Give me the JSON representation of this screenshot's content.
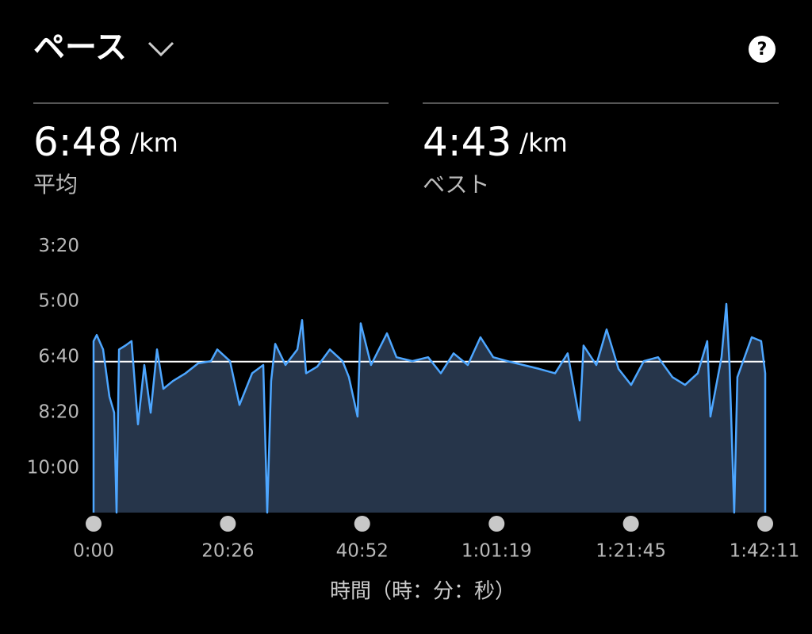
{
  "chart_data": {
    "type": "area",
    "title": "ペース",
    "stats": [
      {
        "value_label": "6:48",
        "unit": "/km",
        "label": "平均"
      },
      {
        "value_label": "4:43",
        "unit": "/km",
        "label": "ベスト"
      }
    ],
    "average": 408,
    "xlabel": "時間（時：分：秒）",
    "x": [
      0,
      29,
      87,
      145,
      188,
      210,
      232,
      290,
      347,
      405,
      463,
      521,
      579,
      637,
      724,
      840,
      955,
      1071,
      1129,
      1245,
      1332,
      1448,
      1549,
      1585,
      1621,
      1658,
      1752,
      1860,
      1904,
      1940,
      2041,
      2157,
      2273,
      2331,
      2410,
      2439,
      2533,
      2678,
      2765,
      2910,
      3054,
      3170,
      3286,
      3416,
      3532,
      3648,
      3778,
      3923,
      4068,
      4213,
      4328,
      4437,
      4473,
      4589,
      4683,
      4792,
      4907,
      5023,
      5153,
      5284,
      5399,
      5515,
      5602,
      5631,
      5732,
      5776,
      5805,
      5848,
      5877,
      6008,
      6094,
      6131
    ],
    "values": [
      371,
      360,
      386,
      471,
      500,
      680,
      386,
      379,
      371,
      521,
      414,
      500,
      386,
      457,
      443,
      429,
      411,
      407,
      386,
      407,
      486,
      429,
      414,
      680,
      443,
      376,
      414,
      386,
      333,
      429,
      417,
      386,
      407,
      436,
      507,
      339,
      414,
      357,
      400,
      407,
      400,
      429,
      393,
      414,
      364,
      400,
      407,
      414,
      421,
      429,
      393,
      514,
      379,
      414,
      350,
      421,
      450,
      407,
      400,
      436,
      450,
      429,
      371,
      507,
      400,
      304,
      414,
      680,
      436,
      364,
      371,
      429
    ],
    "color": "#4da6ff",
    "fill": "#26354a",
    "xlim": [
      0,
      6131
    ],
    "xticks": [
      {
        "value": 0,
        "label": "0:00"
      },
      {
        "value": 1226,
        "label": "20:26"
      },
      {
        "value": 2452,
        "label": "40:52"
      },
      {
        "value": 3679,
        "label": "1:01:19"
      },
      {
        "value": 4905,
        "label": "1:21:45"
      },
      {
        "value": 6131,
        "label": "1:42:11"
      }
    ],
    "ylim": [
      680,
      171
    ],
    "yticks": [
      {
        "value": 200,
        "label": "3:20"
      },
      {
        "value": 300,
        "label": "5:00"
      },
      {
        "value": 400,
        "label": "6:40"
      },
      {
        "value": 500,
        "label": "8:20"
      },
      {
        "value": 600,
        "label": "10:00"
      }
    ]
  }
}
